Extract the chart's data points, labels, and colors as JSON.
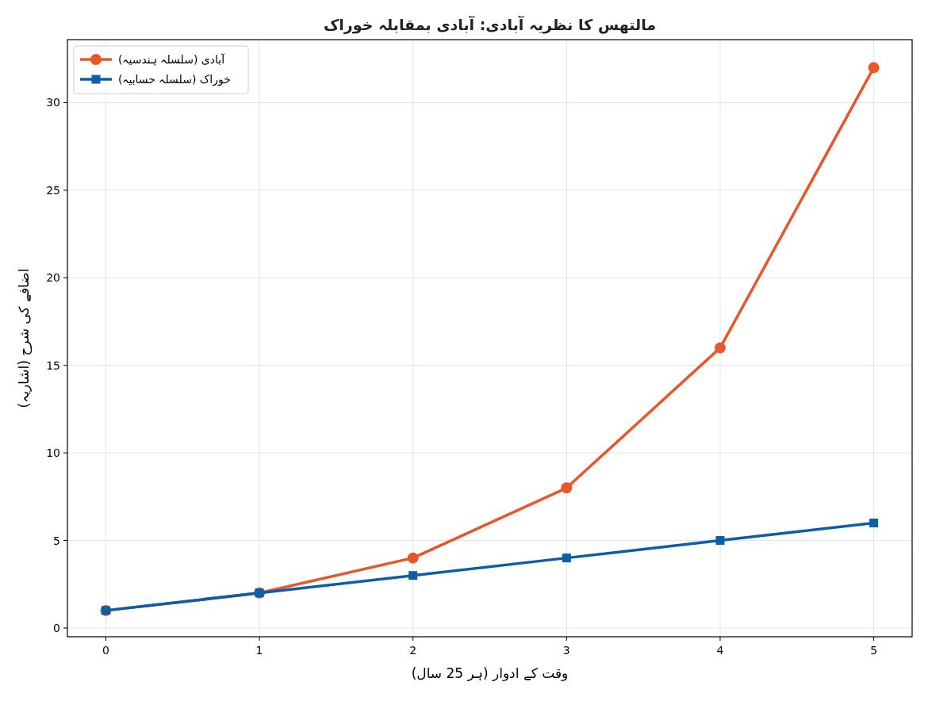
{
  "chart_data": {
    "type": "line",
    "title": "مالتھس کا نظریہ آبادی: آبادی بمقابلہ خوراک",
    "xlabel": "وقت کے ادوار (ہر 25 سال)",
    "ylabel": "اضافے کی شرح (اشاریہ)",
    "x": [
      0,
      1,
      2,
      3,
      4,
      5
    ],
    "series": [
      {
        "name": "آبادی (سلسلہ ہندسیہ)",
        "color": "#e8572a",
        "marker": "circle",
        "values": [
          1,
          2,
          4,
          8,
          16,
          32
        ]
      },
      {
        "name": "خوراک (سلسلہ حسابیہ)",
        "color": "#0b5ea8",
        "marker": "square",
        "values": [
          1,
          2,
          3,
          4,
          5,
          6
        ]
      }
    ],
    "xlim": [
      -0.25,
      5.25
    ],
    "ylim": [
      -0.5,
      33.6
    ],
    "xticks": [
      0,
      1,
      2,
      3,
      4,
      5
    ],
    "yticks": [
      0,
      5,
      10,
      15,
      20,
      25,
      30
    ],
    "grid": true,
    "legend": "top left",
    "line_style": "solid"
  }
}
